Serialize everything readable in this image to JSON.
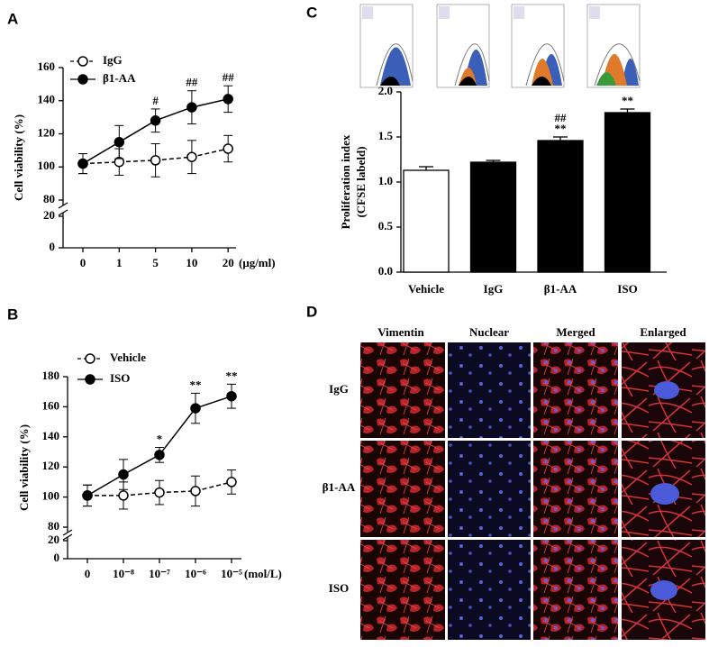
{
  "chart_data": [
    {
      "type": "line",
      "panel": "A",
      "y_label": "Cell viability (%)",
      "x_unit": "(μg/ml)",
      "categories": [
        "0",
        "1",
        "5",
        "10",
        "20"
      ],
      "ylim": [
        80,
        160
      ],
      "yticks": [
        80,
        100,
        120,
        140,
        160
      ],
      "lower_ylim": [
        0,
        20
      ],
      "lower_yticks": [
        0,
        20
      ],
      "series": [
        {
          "name": "IgG",
          "color": "#000000",
          "marker_fill": "#ffffff",
          "line_style": "dashed",
          "values": [
            102,
            103,
            104,
            106,
            111
          ],
          "errors": [
            6,
            8,
            10,
            10,
            8
          ]
        },
        {
          "name": "β1-AA",
          "color": "#000000",
          "marker_fill": "#000000",
          "line_style": "solid",
          "values": [
            102,
            115,
            128,
            136,
            141
          ],
          "errors": [
            6,
            10,
            7,
            10,
            8
          ],
          "annotations": [
            null,
            null,
            "#",
            "##",
            "##"
          ]
        }
      ]
    },
    {
      "type": "line",
      "panel": "B",
      "y_label": "Cell viability (%)",
      "x_unit": "(mol/L)",
      "categories": [
        "0",
        "10⁻⁸",
        "10⁻⁷",
        "10⁻⁶",
        "10⁻⁵"
      ],
      "ylim": [
        80,
        180
      ],
      "yticks": [
        80,
        100,
        120,
        140,
        160,
        180
      ],
      "lower_ylim": [
        0,
        20
      ],
      "lower_yticks": [
        0,
        20
      ],
      "series": [
        {
          "name": "Vehicle",
          "color": "#000000",
          "marker_fill": "#ffffff",
          "line_style": "dashed",
          "values": [
            101,
            101,
            103,
            104,
            110
          ],
          "errors": [
            7,
            9,
            8,
            10,
            8
          ]
        },
        {
          "name": "ISO",
          "color": "#000000",
          "marker_fill": "#000000",
          "line_style": "solid",
          "values": [
            101,
            115,
            128,
            159,
            167
          ],
          "errors": [
            7,
            10,
            5,
            10,
            8
          ],
          "annotations": [
            null,
            null,
            "*",
            "**",
            "**"
          ]
        }
      ]
    },
    {
      "type": "bar",
      "panel": "C",
      "y_label": [
        "Proliferation index",
        "(CFSE labeld)"
      ],
      "categories": [
        "Vehicle",
        "IgG",
        "β1-AA",
        "ISO"
      ],
      "values": [
        1.13,
        1.22,
        1.46,
        1.77
      ],
      "errors": [
        0.04,
        0.02,
        0.04,
        0.04
      ],
      "colors": [
        "#ffffff",
        "#000000",
        "#000000",
        "#000000"
      ],
      "annotations": [
        null,
        null,
        [
          "##",
          "**"
        ],
        [
          "**"
        ]
      ],
      "ylim": [
        0,
        2
      ],
      "yticks": [
        {
          "value": 0,
          "label": "0.0"
        },
        0.5,
        {
          "value": 1,
          "label": "1.0"
        },
        1.5,
        {
          "value": 2,
          "label": "2.0"
        }
      ]
    }
  ],
  "panel_d": {
    "panel": "D",
    "columns": [
      "Vimentin",
      "Nuclear",
      "Merged",
      "Enlarged"
    ],
    "rows": [
      "IgG",
      "β1-AA",
      "ISO"
    ]
  }
}
